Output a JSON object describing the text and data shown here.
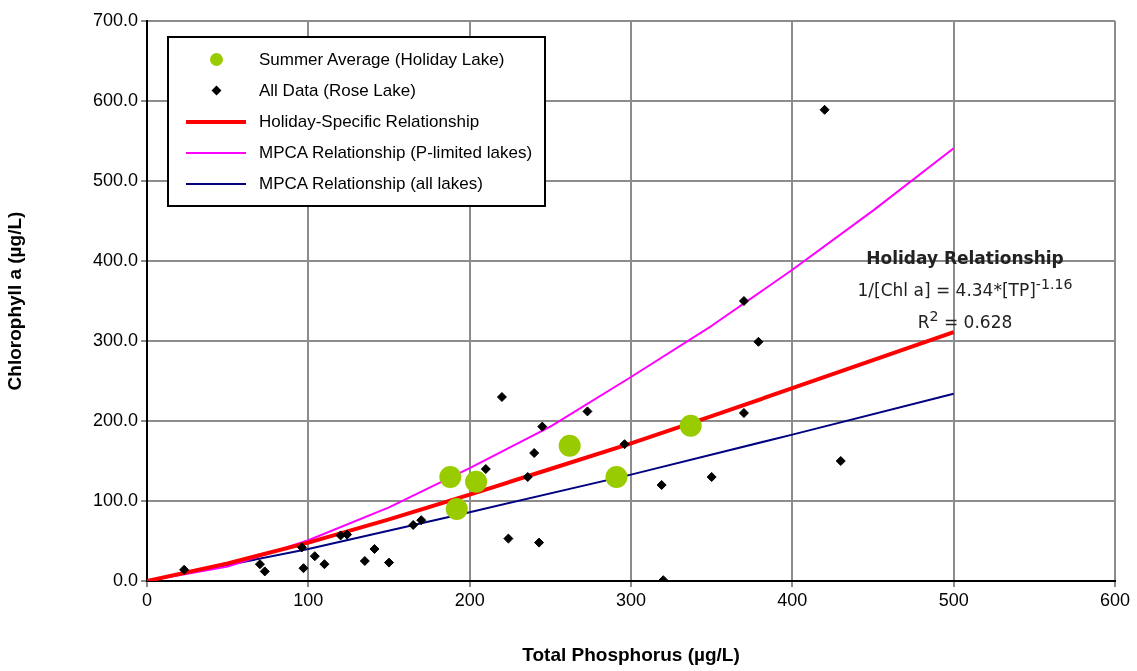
{
  "chart_data": {
    "type": "scatter",
    "xlabel": "Total Phosphorus (µg/L)",
    "ylabel": "Chlorophyll a (µg/L)",
    "xlim": [
      0,
      600
    ],
    "xticks": [
      0,
      100,
      200,
      300,
      400,
      500,
      600
    ],
    "ylim": [
      0,
      700
    ],
    "yticks": [
      {
        "value": 0,
        "label": "0.0"
      },
      {
        "value": 100,
        "label": "100.0"
      },
      {
        "value": 200,
        "label": "200.0"
      },
      {
        "value": 300,
        "label": "300.0"
      },
      {
        "value": 400,
        "label": "400.0"
      },
      {
        "value": 500,
        "label": "500.0"
      },
      {
        "value": 600,
        "label": "600.0"
      },
      {
        "value": 700,
        "label": "700.0"
      }
    ],
    "grid": true,
    "legend": "top left",
    "annotations": [
      "Holiday Relationship",
      "1/[Chl a] = 4.34*[TP]$^{-1.16}$",
      "R$^{2}$ = 0.628"
    ],
    "series": [
      {
        "name": "Summer Average (Holiday Lake)",
        "marker": "circle",
        "color": "#99cc00",
        "x": [
          188,
          204,
          192,
          262,
          291,
          337
        ],
        "values": [
          130,
          124,
          90,
          169,
          130,
          194
        ]
      },
      {
        "name": "All Data (Rose Lake)",
        "marker": "diamond",
        "color": "#000000",
        "x": [
          23,
          70,
          73,
          96,
          97,
          104,
          110,
          120,
          124,
          135,
          141,
          150,
          165,
          170,
          220,
          273,
          245,
          240,
          210,
          236,
          296,
          370,
          319,
          350,
          224,
          243,
          320,
          420,
          370,
          379,
          430
        ],
        "values": [
          14,
          21,
          12,
          42,
          16,
          31,
          21,
          57,
          58,
          25,
          40,
          23,
          70,
          76,
          230,
          212,
          193,
          160,
          140,
          130,
          171,
          210,
          120,
          130,
          53,
          48,
          1,
          589,
          350,
          299,
          150
        ]
      },
      {
        "name": "Holiday-Specific Relationship",
        "type": "line",
        "marker": "none",
        "color": "#ff0000",
        "x": [
          0,
          50,
          100,
          150,
          200,
          250,
          300,
          350,
          400,
          450,
          500
        ],
        "values": [
          0,
          22,
          48,
          77,
          108,
          140,
          172,
          206,
          241,
          276,
          311
        ]
      },
      {
        "name": "MPCA Relationship (P-limited lakes)",
        "type": "line",
        "marker": "none",
        "color": "#ff00ff",
        "x": [
          0,
          50,
          100,
          150,
          200,
          250,
          300,
          350,
          400,
          450,
          500
        ],
        "values": [
          0,
          18,
          51,
          92,
          141,
          193,
          255,
          319,
          389,
          463,
          541
        ]
      },
      {
        "name": "MPCA Relationship (all lakes)",
        "type": "line",
        "marker": "none",
        "color": "#000080",
        "x": [
          0,
          100,
          200,
          300,
          400,
          500
        ],
        "values": [
          0,
          40,
          86,
          133,
          183,
          234
        ]
      }
    ]
  }
}
